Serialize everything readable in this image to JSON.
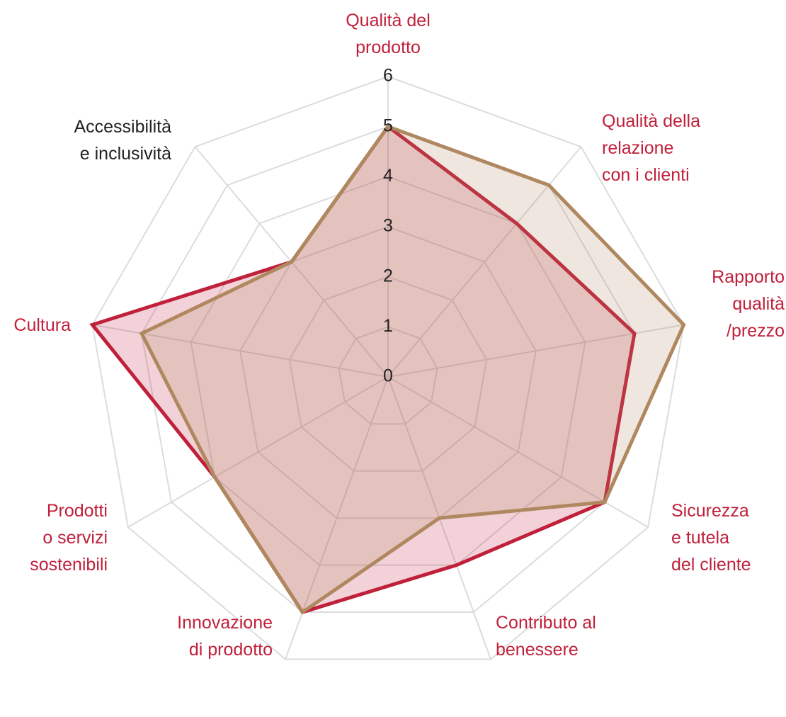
{
  "chart_data": {
    "type": "radar",
    "categories": [
      "Qualità del\nprodotto",
      "Qualità della\nrelazione\ncon i clienti",
      "Rapporto\nqualità\n/prezzo",
      "Sicurezza\ne tutela\ndel cliente",
      "Contributo al\nbenessere",
      "Innovazione\ndi prodotto",
      "Prodotti\no servizi\nsostenibili",
      "Cultura",
      "Accessibilità\ne inclusività"
    ],
    "category_colors": [
      "#c0203a",
      "#c0203a",
      "#c0203a",
      "#c0203a",
      "#c0203a",
      "#c0203a",
      "#c0203a",
      "#c0203a",
      "#222222"
    ],
    "series": [
      {
        "color": "#c0203a",
        "values": [
          5,
          4,
          5,
          5,
          4,
          5,
          4,
          6,
          3
        ]
      },
      {
        "color": "#b08860",
        "values": [
          5,
          5,
          6,
          5,
          3,
          5,
          4,
          5,
          3
        ]
      }
    ],
    "ylim": [
      0,
      6
    ],
    "yticks": [
      0,
      1,
      2,
      3,
      4,
      5,
      6
    ],
    "grid": true
  }
}
